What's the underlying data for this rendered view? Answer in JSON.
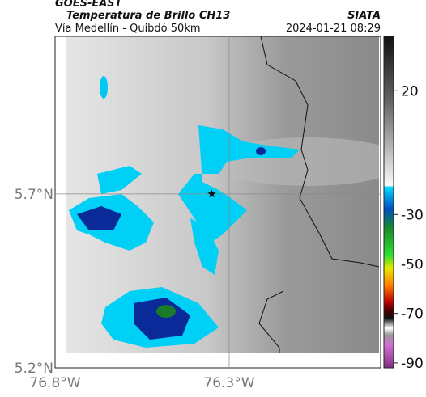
{
  "header": {
    "satellite": "GOES-EAST",
    "product": "Temperatura de Brillo CH13",
    "region": "Vía Medellín - Quibdó 50km",
    "org": "SIATA",
    "datetime": "2024-01-21 08:29"
  },
  "map": {
    "xlim": [
      -76.8,
      -75.865
    ],
    "ylim": [
      5.2,
      6.153
    ],
    "xticks": [
      {
        "value": -76.8,
        "label": "76.8°W"
      },
      {
        "value": -76.3,
        "label": "76.3°W"
      }
    ],
    "yticks": [
      {
        "value": 5.7,
        "label": "5.7°N"
      },
      {
        "value": 5.2,
        "label": "5.2°N"
      }
    ],
    "grid": true,
    "marker": {
      "lon": -76.35,
      "lat": 5.7
    }
  },
  "colorbar": {
    "lim": [
      -92,
      42
    ],
    "ticks": [
      20,
      -30,
      -50,
      -70,
      -90
    ]
  }
}
